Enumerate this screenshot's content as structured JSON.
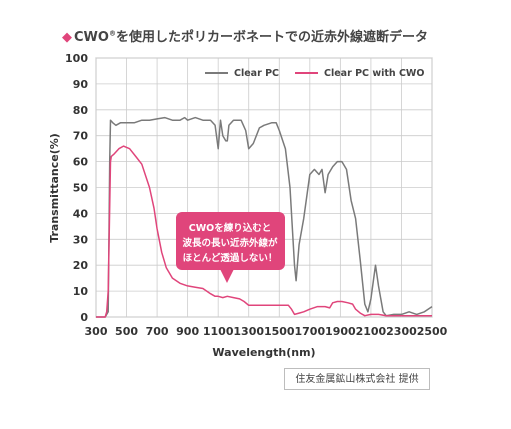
{
  "header": {
    "prefix": "CWO",
    "registered": "®",
    "rest": "を使用したポリカーボネートでの近赤外線遮断データ"
  },
  "credit": "住友金属鉱山株式会社 提供",
  "callout": {
    "lines": [
      "CWOを練り込むと",
      "波長の長い近赤外線が",
      "ほとんど透過しない！"
    ]
  },
  "colors": {
    "clear_pc": "#7a7a7a",
    "cwo": "#e0457b",
    "grid": "#cccccc",
    "accent": "#e0457b"
  },
  "chart_data": {
    "type": "line",
    "xlabel": "Wavelength(nm)",
    "ylabel": "Transmittance(%)",
    "xlim": [
      300,
      2500
    ],
    "ylim": [
      0,
      100
    ],
    "x_ticks": [
      300,
      500,
      700,
      900,
      1100,
      1300,
      1500,
      1700,
      1900,
      2100,
      2300,
      2500
    ],
    "y_ticks": [
      0,
      10,
      20,
      30,
      40,
      50,
      60,
      70,
      80,
      90,
      100
    ],
    "grid": true,
    "legend_position": "top-right",
    "series": [
      {
        "name": "Clear PC",
        "color": "#7a7a7a",
        "points": [
          [
            300,
            0
          ],
          [
            360,
            0
          ],
          [
            380,
            2
          ],
          [
            390,
            60
          ],
          [
            395,
            76
          ],
          [
            410,
            75
          ],
          [
            430,
            74
          ],
          [
            460,
            75
          ],
          [
            500,
            75
          ],
          [
            550,
            75
          ],
          [
            600,
            76
          ],
          [
            650,
            76
          ],
          [
            700,
            76.5
          ],
          [
            750,
            77
          ],
          [
            800,
            76
          ],
          [
            850,
            76
          ],
          [
            880,
            77
          ],
          [
            900,
            76
          ],
          [
            950,
            77
          ],
          [
            1000,
            76
          ],
          [
            1050,
            76
          ],
          [
            1080,
            74
          ],
          [
            1100,
            65
          ],
          [
            1115,
            76
          ],
          [
            1130,
            70
          ],
          [
            1150,
            68
          ],
          [
            1160,
            68
          ],
          [
            1170,
            74
          ],
          [
            1200,
            76
          ],
          [
            1250,
            76
          ],
          [
            1280,
            72
          ],
          [
            1300,
            65
          ],
          [
            1330,
            67
          ],
          [
            1370,
            73
          ],
          [
            1400,
            74
          ],
          [
            1450,
            75
          ],
          [
            1480,
            75
          ],
          [
            1500,
            72
          ],
          [
            1540,
            65
          ],
          [
            1570,
            50
          ],
          [
            1600,
            20
          ],
          [
            1610,
            14
          ],
          [
            1630,
            28
          ],
          [
            1660,
            38
          ],
          [
            1700,
            55
          ],
          [
            1730,
            57
          ],
          [
            1760,
            55
          ],
          [
            1780,
            57
          ],
          [
            1800,
            48
          ],
          [
            1820,
            55
          ],
          [
            1850,
            58
          ],
          [
            1880,
            60
          ],
          [
            1910,
            60
          ],
          [
            1940,
            57
          ],
          [
            1970,
            45
          ],
          [
            2000,
            38
          ],
          [
            2030,
            22
          ],
          [
            2060,
            5
          ],
          [
            2080,
            2
          ],
          [
            2100,
            7
          ],
          [
            2130,
            20
          ],
          [
            2150,
            12
          ],
          [
            2180,
            2
          ],
          [
            2200,
            0.5
          ],
          [
            2250,
            1
          ],
          [
            2300,
            1
          ],
          [
            2350,
            2
          ],
          [
            2400,
            1
          ],
          [
            2450,
            2
          ],
          [
            2500,
            4
          ]
        ]
      },
      {
        "name": "Clear PC with CWO",
        "color": "#e0457b",
        "points": [
          [
            300,
            0
          ],
          [
            360,
            0
          ],
          [
            370,
            2
          ],
          [
            380,
            10
          ],
          [
            395,
            60
          ],
          [
            400,
            62
          ],
          [
            420,
            63
          ],
          [
            450,
            65
          ],
          [
            480,
            66
          ],
          [
            520,
            65
          ],
          [
            560,
            62
          ],
          [
            600,
            59
          ],
          [
            650,
            50
          ],
          [
            680,
            42
          ],
          [
            700,
            34
          ],
          [
            730,
            25
          ],
          [
            760,
            19
          ],
          [
            800,
            15
          ],
          [
            850,
            13
          ],
          [
            900,
            12
          ],
          [
            950,
            11.5
          ],
          [
            1000,
            11
          ],
          [
            1050,
            9
          ],
          [
            1080,
            8
          ],
          [
            1100,
            8
          ],
          [
            1130,
            7.5
          ],
          [
            1160,
            8
          ],
          [
            1200,
            7.5
          ],
          [
            1240,
            7
          ],
          [
            1270,
            6
          ],
          [
            1300,
            4.5
          ],
          [
            1350,
            4.5
          ],
          [
            1400,
            4.5
          ],
          [
            1450,
            4.5
          ],
          [
            1500,
            4.5
          ],
          [
            1560,
            4.5
          ],
          [
            1580,
            3
          ],
          [
            1600,
            1
          ],
          [
            1630,
            1.5
          ],
          [
            1660,
            2
          ],
          [
            1700,
            3
          ],
          [
            1750,
            4
          ],
          [
            1800,
            4
          ],
          [
            1830,
            3.5
          ],
          [
            1850,
            5.5
          ],
          [
            1880,
            6
          ],
          [
            1910,
            6
          ],
          [
            1950,
            5.5
          ],
          [
            1980,
            5
          ],
          [
            2000,
            3
          ],
          [
            2030,
            1.5
          ],
          [
            2060,
            0.5
          ],
          [
            2100,
            1
          ],
          [
            2150,
            1
          ],
          [
            2200,
            0.5
          ],
          [
            2300,
            0.5
          ],
          [
            2400,
            0.5
          ],
          [
            2500,
            0.5
          ]
        ]
      }
    ]
  }
}
